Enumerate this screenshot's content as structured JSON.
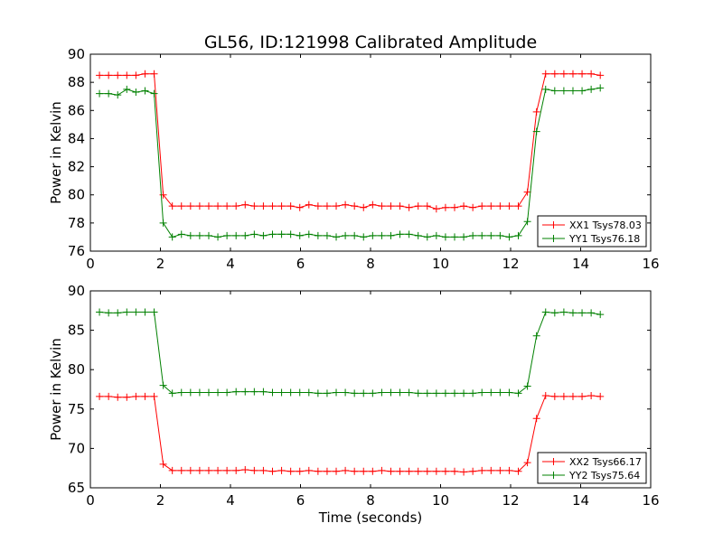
{
  "figure_title": "GL56, ID:121998 Calibrated Amplitude",
  "chart_data": [
    {
      "type": "line",
      "title": "GL56, ID:121998 Calibrated Amplitude",
      "xlabel": "",
      "ylabel": "Power in Kelvin",
      "xlim": [
        0,
        16
      ],
      "ylim": [
        76,
        90
      ],
      "xticks": [
        0,
        2,
        4,
        6,
        8,
        10,
        12,
        14,
        16
      ],
      "yticks": [
        76,
        78,
        80,
        82,
        84,
        86,
        88,
        90
      ],
      "grid": false,
      "legend_position": "bottom-right",
      "x": [
        0.26,
        0.52,
        0.78,
        1.04,
        1.3,
        1.56,
        1.82,
        2.08,
        2.34,
        2.6,
        2.86,
        3.12,
        3.38,
        3.64,
        3.9,
        4.16,
        4.42,
        4.68,
        4.94,
        5.2,
        5.46,
        5.72,
        5.98,
        6.24,
        6.5,
        6.76,
        7.02,
        7.28,
        7.54,
        7.8,
        8.06,
        8.32,
        8.58,
        8.84,
        9.1,
        9.36,
        9.62,
        9.88,
        10.14,
        10.4,
        10.66,
        10.92,
        11.18,
        11.44,
        11.7,
        11.96,
        12.22,
        12.48,
        12.74,
        13.0,
        13.26,
        13.52,
        13.78,
        14.04,
        14.3,
        14.56
      ],
      "series": [
        {
          "name": "XX1 Tsys78.03",
          "color": "#ff0000",
          "values": [
            88.5,
            88.5,
            88.5,
            88.5,
            88.5,
            88.6,
            88.6,
            80.0,
            79.2,
            79.2,
            79.2,
            79.2,
            79.2,
            79.2,
            79.2,
            79.2,
            79.3,
            79.2,
            79.2,
            79.2,
            79.2,
            79.2,
            79.1,
            79.3,
            79.2,
            79.2,
            79.2,
            79.3,
            79.2,
            79.1,
            79.3,
            79.2,
            79.2,
            79.2,
            79.1,
            79.2,
            79.2,
            79.0,
            79.1,
            79.1,
            79.2,
            79.1,
            79.2,
            79.2,
            79.2,
            79.2,
            79.2,
            80.2,
            85.9,
            88.6,
            88.6,
            88.6,
            88.6,
            88.6,
            88.6,
            88.5
          ]
        },
        {
          "name": "YY1 Tsys76.18",
          "color": "#008000",
          "values": [
            87.2,
            87.2,
            87.1,
            87.5,
            87.3,
            87.4,
            87.2,
            78.0,
            77.0,
            77.2,
            77.1,
            77.1,
            77.1,
            77.0,
            77.1,
            77.1,
            77.1,
            77.2,
            77.1,
            77.2,
            77.2,
            77.2,
            77.1,
            77.2,
            77.1,
            77.1,
            77.0,
            77.1,
            77.1,
            77.0,
            77.1,
            77.1,
            77.1,
            77.2,
            77.2,
            77.1,
            77.0,
            77.1,
            77.0,
            77.0,
            77.0,
            77.1,
            77.1,
            77.1,
            77.1,
            77.0,
            77.1,
            78.1,
            84.5,
            87.5,
            87.4,
            87.4,
            87.4,
            87.4,
            87.5,
            87.6
          ]
        }
      ]
    },
    {
      "type": "line",
      "title": "",
      "xlabel": "Time (seconds)",
      "ylabel": "Power in Kelvin",
      "xlim": [
        0,
        16
      ],
      "ylim": [
        65,
        90
      ],
      "xticks": [
        0,
        2,
        4,
        6,
        8,
        10,
        12,
        14,
        16
      ],
      "yticks": [
        65,
        70,
        75,
        80,
        85,
        90
      ],
      "grid": false,
      "legend_position": "bottom-right",
      "x": [
        0.26,
        0.52,
        0.78,
        1.04,
        1.3,
        1.56,
        1.82,
        2.08,
        2.34,
        2.6,
        2.86,
        3.12,
        3.38,
        3.64,
        3.9,
        4.16,
        4.42,
        4.68,
        4.94,
        5.2,
        5.46,
        5.72,
        5.98,
        6.24,
        6.5,
        6.76,
        7.02,
        7.28,
        7.54,
        7.8,
        8.06,
        8.32,
        8.58,
        8.84,
        9.1,
        9.36,
        9.62,
        9.88,
        10.14,
        10.4,
        10.66,
        10.92,
        11.18,
        11.44,
        11.7,
        11.96,
        12.22,
        12.48,
        12.74,
        13.0,
        13.26,
        13.52,
        13.78,
        14.04,
        14.3,
        14.56
      ],
      "series": [
        {
          "name": "XX2 Tsys66.17",
          "color": "#ff0000",
          "values": [
            76.6,
            76.6,
            76.5,
            76.5,
            76.6,
            76.6,
            76.6,
            68.0,
            67.2,
            67.2,
            67.2,
            67.2,
            67.2,
            67.2,
            67.2,
            67.2,
            67.3,
            67.2,
            67.2,
            67.1,
            67.2,
            67.1,
            67.1,
            67.2,
            67.1,
            67.1,
            67.1,
            67.2,
            67.1,
            67.1,
            67.1,
            67.2,
            67.1,
            67.1,
            67.1,
            67.1,
            67.1,
            67.1,
            67.1,
            67.1,
            67.0,
            67.1,
            67.2,
            67.2,
            67.2,
            67.2,
            67.1,
            68.2,
            73.8,
            76.7,
            76.6,
            76.6,
            76.6,
            76.6,
            76.7,
            76.6
          ]
        },
        {
          "name": "YY2 Tsys75.64",
          "color": "#008000",
          "values": [
            87.3,
            87.2,
            87.2,
            87.3,
            87.3,
            87.3,
            87.3,
            78.0,
            77.0,
            77.1,
            77.1,
            77.1,
            77.1,
            77.1,
            77.1,
            77.2,
            77.2,
            77.2,
            77.2,
            77.1,
            77.1,
            77.1,
            77.1,
            77.1,
            77.0,
            77.0,
            77.1,
            77.1,
            77.0,
            77.0,
            77.0,
            77.1,
            77.1,
            77.1,
            77.1,
            77.0,
            77.0,
            77.0,
            77.0,
            77.0,
            77.0,
            77.0,
            77.1,
            77.1,
            77.1,
            77.1,
            77.0,
            77.9,
            84.3,
            87.3,
            87.2,
            87.3,
            87.2,
            87.2,
            87.2,
            87.0
          ]
        }
      ]
    }
  ]
}
